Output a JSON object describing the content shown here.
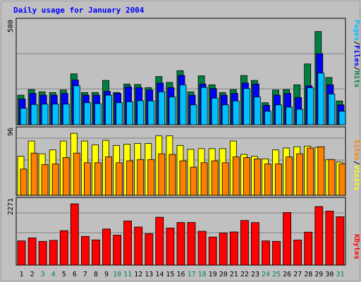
{
  "chart_data": {
    "type": "bar",
    "title": "Daily usage for January 2004",
    "x": [
      "1",
      "2",
      "3",
      "4",
      "5",
      "6",
      "7",
      "8",
      "9",
      "10",
      "11",
      "12",
      "13",
      "14",
      "15",
      "16",
      "17",
      "18",
      "19",
      "20",
      "21",
      "22",
      "23",
      "24",
      "25",
      "26",
      "27",
      "28",
      "29",
      "30",
      "31"
    ],
    "weekend_days": [
      "3",
      "4",
      "10",
      "11",
      "17",
      "18",
      "24",
      "25",
      "31"
    ],
    "panels": [
      {
        "name": "hits-files-pages",
        "ymax_label": "500",
        "ymax": 500,
        "series": [
          {
            "name": "Hits",
            "color": "#008040",
            "values": [
              149,
              177,
              166,
              162,
              175,
              256,
              162,
              162,
              223,
              162,
              205,
              203,
              187,
              243,
              213,
              272,
              166,
              246,
              201,
              162,
              177,
              248,
              223,
              111,
              175,
              177,
              201,
              306,
              469,
              238,
              120
            ]
          },
          {
            "name": "Files",
            "color": "#0000ff",
            "values": [
              130,
              158,
              149,
              149,
              158,
              225,
              149,
              149,
              168,
              158,
              191,
              187,
              175,
              210,
              187,
              248,
              149,
              205,
              182,
              149,
              158,
              210,
              205,
              98,
              149,
              158,
              137,
              196,
              357,
              201,
              100
            ]
          },
          {
            "name": "Pages",
            "color": "#00c0ff",
            "values": [
              83,
              102,
              104,
              104,
              104,
              196,
              111,
              106,
              149,
              111,
              116,
              121,
              120,
              166,
              140,
              201,
              100,
              188,
              134,
              100,
              120,
              182,
              140,
              68,
              100,
              89,
              78,
              186,
              260,
              155,
              68
            ]
          }
        ]
      },
      {
        "name": "visits-sites",
        "ymax_label": "96",
        "ymax": 96,
        "series": [
          {
            "name": "Visits",
            "color": "#ffff00",
            "values": [
              61,
              85,
              65,
              71,
              85,
              97,
              85,
              79,
              86,
              78,
              80,
              81,
              81,
              93,
              93,
              78,
              72,
              73,
              73,
              73,
              85,
              64,
              61,
              57,
              71,
              74,
              76,
              77,
              75,
              56,
              52
            ]
          },
          {
            "name": "Sites",
            "color": "#ff8000",
            "values": [
              41,
              66,
              48,
              49,
              59,
              66,
              51,
              51,
              60,
              51,
              54,
              56,
              56,
              65,
              64,
              54,
              44,
              51,
              54,
              51,
              60,
              59,
              57,
              49,
              49,
              60,
              65,
              74,
              76,
              56,
              49
            ]
          }
        ]
      },
      {
        "name": "kbytes",
        "ymax_label": "2271",
        "ymax": 2271,
        "series": [
          {
            "name": "KBytes",
            "color": "#ff0000",
            "values": [
              906,
              1016,
              889,
              927,
              1288,
              2296,
              1075,
              942,
              1352,
              1123,
              1653,
              1426,
              1177,
              1793,
              1390,
              1596,
              1597,
              1267,
              1050,
              1202,
              1241,
              1672,
              1593,
              906,
              891,
              1970,
              941,
              1234,
              2192,
              2019,
              1811
            ]
          }
        ]
      }
    ],
    "legend_right": {
      "panel1": [
        "Pages",
        "/",
        "Files",
        "/",
        "Hits"
      ],
      "panel2": [
        "Sites",
        "/",
        "Visits"
      ],
      "panel3": [
        "KBytes"
      ]
    },
    "grid": true,
    "legend_placement": "right-vertical"
  },
  "colors": {
    "background": "#c0c0c0",
    "plot_background": "#c0c0c0",
    "title": "#0000ff",
    "weekday_label": "#000000",
    "weekend_label": "#00805c"
  }
}
